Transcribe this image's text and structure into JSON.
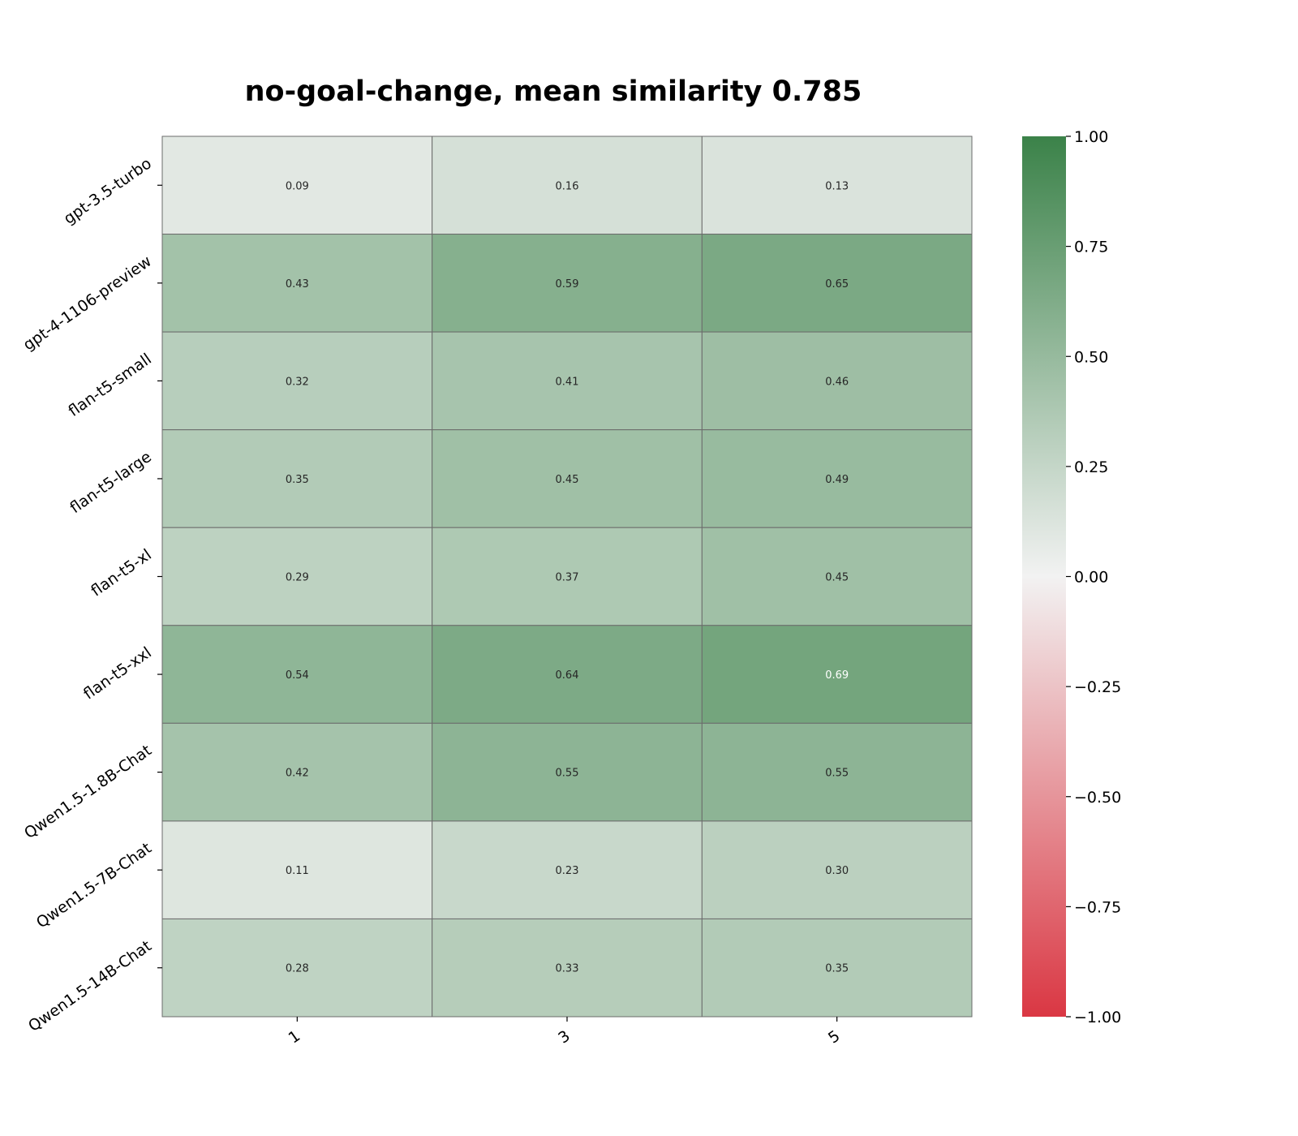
{
  "chart_data": {
    "type": "heatmap",
    "title": "no-goal-change, mean similarity 0.785",
    "xlabel": "",
    "ylabel": "",
    "x_categories": [
      "1",
      "3",
      "5"
    ],
    "y_categories": [
      "gpt-3.5-turbo",
      "gpt-4-1106-preview",
      "flan-t5-small",
      "flan-t5-large",
      "flan-t5-xl",
      "flan-t5-xxl",
      "Qwen1.5-1.8B-Chat",
      "Qwen1.5-7B-Chat",
      "Qwen1.5-14B-Chat"
    ],
    "values": [
      [
        0.09,
        0.16,
        0.13
      ],
      [
        0.43,
        0.59,
        0.65
      ],
      [
        0.32,
        0.41,
        0.46
      ],
      [
        0.35,
        0.45,
        0.49
      ],
      [
        0.29,
        0.37,
        0.45
      ],
      [
        0.54,
        0.64,
        0.69
      ],
      [
        0.42,
        0.55,
        0.55
      ],
      [
        0.11,
        0.23,
        0.3
      ],
      [
        0.28,
        0.33,
        0.35
      ]
    ],
    "value_labels": [
      [
        "0.09",
        "0.16",
        "0.13"
      ],
      [
        "0.43",
        "0.59",
        "0.65"
      ],
      [
        "0.32",
        "0.41",
        "0.46"
      ],
      [
        "0.35",
        "0.45",
        "0.49"
      ],
      [
        "0.29",
        "0.37",
        "0.45"
      ],
      [
        "0.54",
        "0.64",
        "0.69"
      ],
      [
        "0.42",
        "0.55",
        "0.55"
      ],
      [
        "0.11",
        "0.23",
        "0.30"
      ],
      [
        "0.28",
        "0.33",
        "0.35"
      ]
    ],
    "vlim": [
      -1.0,
      1.0
    ],
    "colorbar": {
      "ticks": [
        1.0,
        0.75,
        0.5,
        0.25,
        0.0,
        -0.25,
        -0.5,
        -0.75,
        -1.0
      ],
      "tick_labels": [
        "1.00",
        "0.75",
        "0.50",
        "0.25",
        "0.00",
        "−0.25",
        "−0.50",
        "−0.75",
        "−1.00"
      ],
      "colors": {
        "low": "#da3743",
        "mid": "#f2f2f2",
        "high": "#3b8249"
      }
    },
    "grid": true,
    "legend": "right colorbar"
  }
}
